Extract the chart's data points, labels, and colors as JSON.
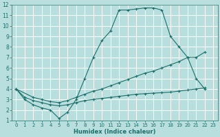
{
  "xlabel": "Humidex (Indice chaleur)",
  "xlim": [
    -0.5,
    23.5
  ],
  "ylim": [
    1,
    12
  ],
  "yticks": [
    1,
    2,
    3,
    4,
    5,
    6,
    7,
    8,
    9,
    10,
    11,
    12
  ],
  "xticks": [
    0,
    1,
    2,
    3,
    4,
    5,
    6,
    7,
    8,
    9,
    10,
    11,
    12,
    13,
    14,
    15,
    16,
    17,
    18,
    19,
    20,
    21,
    22,
    23
  ],
  "bg_color": "#b8dede",
  "grid_color": "#ffffff",
  "line_color": "#1a6e6a",
  "line1_x": [
    0,
    1,
    2,
    3,
    4,
    5,
    6,
    7,
    8,
    9,
    10,
    11,
    12,
    13,
    14,
    15,
    16,
    17,
    18,
    19,
    20,
    21,
    22
  ],
  "line1_y": [
    4.0,
    3.0,
    2.5,
    2.2,
    2.0,
    1.2,
    1.8,
    3.0,
    5.0,
    7.0,
    8.6,
    9.5,
    11.5,
    11.5,
    11.6,
    11.7,
    11.7,
    11.5,
    9.0,
    8.0,
    7.0,
    5.0,
    4.0
  ],
  "line2_x": [
    0,
    2,
    3,
    4,
    5,
    6,
    7,
    8,
    9,
    10,
    11,
    12,
    13,
    14,
    15,
    16,
    17,
    18,
    19,
    20,
    21,
    22
  ],
  "line2_y": [
    4.0,
    3.2,
    3.0,
    2.8,
    2.7,
    2.9,
    3.2,
    3.5,
    3.8,
    4.0,
    4.3,
    4.6,
    4.9,
    5.2,
    5.5,
    5.7,
    6.0,
    6.3,
    6.6,
    7.0,
    7.0,
    7.5
  ],
  "line3_x": [
    0,
    1,
    2,
    3,
    4,
    5,
    6,
    7,
    8,
    9,
    10,
    11,
    12,
    13,
    14,
    15,
    16,
    17,
    18,
    19,
    20,
    21,
    22
  ],
  "line3_y": [
    4.0,
    3.2,
    2.9,
    2.7,
    2.5,
    2.4,
    2.5,
    2.7,
    2.9,
    3.0,
    3.1,
    3.2,
    3.3,
    3.4,
    3.5,
    3.55,
    3.6,
    3.65,
    3.7,
    3.8,
    3.9,
    4.0,
    4.1
  ]
}
